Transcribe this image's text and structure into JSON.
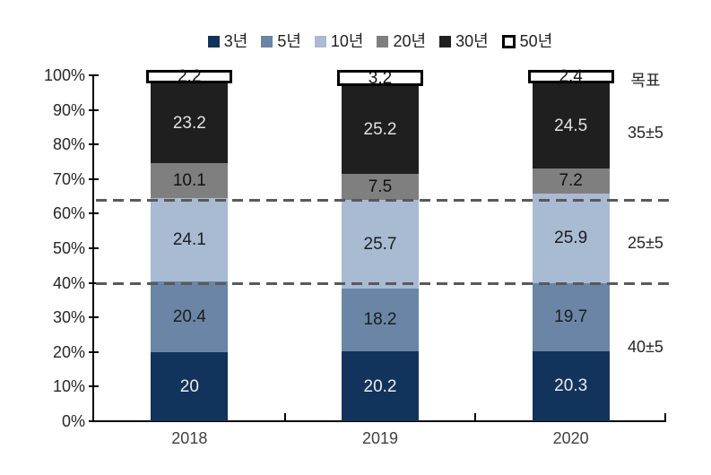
{
  "chart_data": {
    "type": "bar",
    "subtype": "stacked-100-percent",
    "title": "",
    "categories": [
      "2018",
      "2019",
      "2020"
    ],
    "series": [
      {
        "name": "3년",
        "color": "#12335B",
        "hollow": false,
        "label_color": "#EDEEF0",
        "values": [
          20,
          20.2,
          20.3
        ],
        "labels": [
          "20",
          "20.2",
          "20.3"
        ]
      },
      {
        "name": "5년",
        "color": "#6A85A5",
        "hollow": false,
        "label_color": "#1C1C1E",
        "values": [
          20.4,
          18.2,
          19.7
        ],
        "labels": [
          "20.4",
          "18.2",
          "19.7"
        ]
      },
      {
        "name": "10년",
        "color": "#A9BAD3",
        "hollow": false,
        "label_color": "#1C1C1E",
        "values": [
          24.1,
          25.7,
          25.9
        ],
        "labels": [
          "24.1",
          "25.7",
          "25.9"
        ]
      },
      {
        "name": "20년",
        "color": "#7F7F7F",
        "hollow": false,
        "label_color": "#111111",
        "values": [
          10.1,
          7.5,
          7.2
        ],
        "labels": [
          "10.1",
          "7.5",
          "7.2"
        ]
      },
      {
        "name": "30년",
        "color": "#1F1F1F",
        "hollow": false,
        "label_color": "#E4E3E3",
        "values": [
          23.2,
          25.2,
          24.5
        ],
        "labels": [
          "23.2",
          "25.2",
          "24.5"
        ]
      },
      {
        "name": "50년",
        "color": "#FFFFFF",
        "hollow": true,
        "label_color": "#111111",
        "values": [
          2.2,
          3.2,
          2.4
        ],
        "labels": [
          "2.2",
          "3.2",
          "2.4"
        ]
      }
    ],
    "y_axis": {
      "min": 0,
      "max": 100,
      "tick_step": 10,
      "tick_labels": [
        "0%",
        "10%",
        "20%",
        "30%",
        "40%",
        "50%",
        "60%",
        "70%",
        "80%",
        "90%",
        "100%"
      ]
    },
    "x_axis": {
      "tick_labels": [
        "2018",
        "2019",
        "2020"
      ]
    },
    "guide_lines_pct": [
      40,
      64
    ],
    "annotations": [
      {
        "label": "목표",
        "y_pct": 98.5
      },
      {
        "label": "35±5",
        "y_pct": 83.5
      },
      {
        "label": "25±5",
        "y_pct": 51.5
      },
      {
        "label": "40±5",
        "y_pct": 21.5
      }
    ],
    "legend_position": "top-center",
    "grid": false,
    "colors": {
      "axis": "#000000",
      "dash_line": "#595959",
      "y_tick_label": "#262626",
      "x_tick_label": "#404040"
    }
  }
}
